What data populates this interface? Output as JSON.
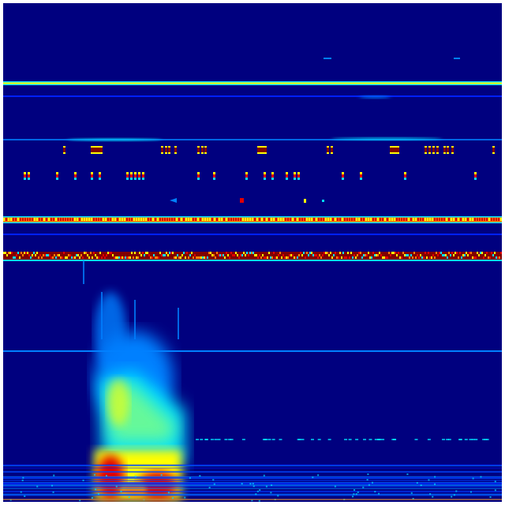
{
  "image": {
    "type": "heatmap",
    "colormap": "jet",
    "colors": {
      "background": "#00007f",
      "blue": "#0020ff",
      "light_blue": "#0080ff",
      "cyan": "#00e0ff",
      "green": "#80ff80",
      "yellow": "#ffff00",
      "orange": "#ff8000",
      "red": "#e00000",
      "dark_red": "#800000",
      "border": "#ffffff"
    }
  }
}
